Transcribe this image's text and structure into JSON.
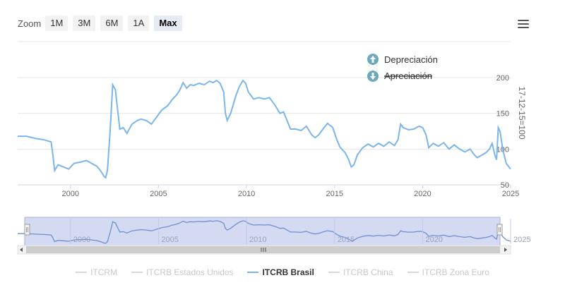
{
  "zoom": {
    "label": "Zoom",
    "buttons": [
      {
        "label": "1M",
        "selected": false
      },
      {
        "label": "3M",
        "selected": false
      },
      {
        "label": "6M",
        "selected": false
      },
      {
        "label": "1A",
        "selected": false
      },
      {
        "label": "Max",
        "selected": true
      }
    ]
  },
  "menu_icon": "hamburger-menu-icon",
  "annotations": {
    "up": {
      "label": "Depreciación",
      "icon": "arrow-up-circle-icon"
    },
    "down": {
      "label": "Apreciación",
      "icon": "arrow-down-circle-icon"
    }
  },
  "colors": {
    "series": "#7cb5ec",
    "navigator_fill": "#d4daf2",
    "annotation_icon": "#6fa8b8",
    "grid": "#e6e6e6"
  },
  "legend": [
    {
      "label": "ITCRM",
      "active": false
    },
    {
      "label": "ITCRB Estados Unidos",
      "active": false
    },
    {
      "label": "ITCRB Brasil",
      "active": true
    },
    {
      "label": "ITCRB China",
      "active": false
    },
    {
      "label": "ITCRB Zona Euro",
      "active": false
    }
  ],
  "chart_data": {
    "type": "line",
    "ylabel": "17-12-15=100",
    "ylim": [
      50,
      200
    ],
    "yticks": [
      50,
      100,
      150,
      200
    ],
    "xlim": [
      1997.0,
      2025.0
    ],
    "xticks": [
      2000,
      2005,
      2010,
      2015,
      2020,
      2025
    ],
    "grid": true,
    "legend_position": "bottom",
    "series": [
      {
        "name": "ITCRB Brasil",
        "points": [
          [
            1997.0,
            118
          ],
          [
            1997.5,
            118
          ],
          [
            1998.0,
            115
          ],
          [
            1998.5,
            113
          ],
          [
            1998.9,
            110
          ],
          [
            1999.0,
            92
          ],
          [
            1999.1,
            70
          ],
          [
            1999.3,
            78
          ],
          [
            1999.6,
            75
          ],
          [
            1999.9,
            72
          ],
          [
            2000.2,
            80
          ],
          [
            2000.6,
            82
          ],
          [
            2000.9,
            84
          ],
          [
            2001.2,
            80
          ],
          [
            2001.5,
            76
          ],
          [
            2001.7,
            70
          ],
          [
            2001.9,
            62
          ],
          [
            2002.0,
            60
          ],
          [
            2002.1,
            70
          ],
          [
            2002.25,
            125
          ],
          [
            2002.4,
            190
          ],
          [
            2002.55,
            183
          ],
          [
            2002.7,
            150
          ],
          [
            2002.8,
            128
          ],
          [
            2003.0,
            130
          ],
          [
            2003.2,
            122
          ],
          [
            2003.5,
            135
          ],
          [
            2003.8,
            140
          ],
          [
            2004.0,
            142
          ],
          [
            2004.3,
            140
          ],
          [
            2004.6,
            135
          ],
          [
            2004.9,
            145
          ],
          [
            2005.2,
            155
          ],
          [
            2005.5,
            160
          ],
          [
            2005.8,
            170
          ],
          [
            2006.0,
            175
          ],
          [
            2006.2,
            182
          ],
          [
            2006.4,
            193
          ],
          [
            2006.6,
            185
          ],
          [
            2006.8,
            190
          ],
          [
            2007.0,
            189
          ],
          [
            2007.3,
            192
          ],
          [
            2007.6,
            190
          ],
          [
            2007.9,
            195
          ],
          [
            2008.1,
            193
          ],
          [
            2008.3,
            196
          ],
          [
            2008.5,
            192
          ],
          [
            2008.7,
            180
          ],
          [
            2008.8,
            150
          ],
          [
            2008.9,
            140
          ],
          [
            2009.1,
            150
          ],
          [
            2009.4,
            175
          ],
          [
            2009.6,
            188
          ],
          [
            2009.8,
            196
          ],
          [
            2009.95,
            192
          ],
          [
            2010.1,
            180
          ],
          [
            2010.4,
            170
          ],
          [
            2010.7,
            172
          ],
          [
            2011.0,
            170
          ],
          [
            2011.3,
            172
          ],
          [
            2011.6,
            162
          ],
          [
            2011.9,
            150
          ],
          [
            2012.1,
            152
          ],
          [
            2012.3,
            140
          ],
          [
            2012.5,
            128
          ],
          [
            2012.8,
            128
          ],
          [
            2013.1,
            126
          ],
          [
            2013.4,
            132
          ],
          [
            2013.7,
            120
          ],
          [
            2013.9,
            116
          ],
          [
            2014.1,
            120
          ],
          [
            2014.4,
            130
          ],
          [
            2014.6,
            136
          ],
          [
            2014.9,
            130
          ],
          [
            2015.1,
            115
          ],
          [
            2015.3,
            103
          ],
          [
            2015.6,
            95
          ],
          [
            2015.8,
            85
          ],
          [
            2015.95,
            75
          ],
          [
            2016.1,
            78
          ],
          [
            2016.3,
            92
          ],
          [
            2016.6,
            102
          ],
          [
            2016.9,
            107
          ],
          [
            2017.2,
            103
          ],
          [
            2017.5,
            108
          ],
          [
            2017.8,
            104
          ],
          [
            2018.1,
            110
          ],
          [
            2018.4,
            105
          ],
          [
            2018.6,
            113
          ],
          [
            2018.75,
            135
          ],
          [
            2018.9,
            130
          ],
          [
            2019.2,
            127
          ],
          [
            2019.5,
            128
          ],
          [
            2019.8,
            132
          ],
          [
            2020.0,
            130
          ],
          [
            2020.2,
            120
          ],
          [
            2020.35,
            102
          ],
          [
            2020.6,
            108
          ],
          [
            2020.9,
            104
          ],
          [
            2021.2,
            109
          ],
          [
            2021.5,
            100
          ],
          [
            2021.8,
            106
          ],
          [
            2022.1,
            100
          ],
          [
            2022.4,
            96
          ],
          [
            2022.7,
            100
          ],
          [
            2022.9,
            93
          ],
          [
            2023.1,
            88
          ],
          [
            2023.4,
            92
          ],
          [
            2023.6,
            95
          ],
          [
            2023.8,
            100
          ],
          [
            2023.95,
            108
          ],
          [
            2024.1,
            92
          ],
          [
            2024.2,
            85
          ],
          [
            2024.3,
            130
          ],
          [
            2024.4,
            125
          ],
          [
            2024.55,
            100
          ],
          [
            2024.75,
            80
          ],
          [
            2025.0,
            72
          ]
        ]
      }
    ]
  }
}
